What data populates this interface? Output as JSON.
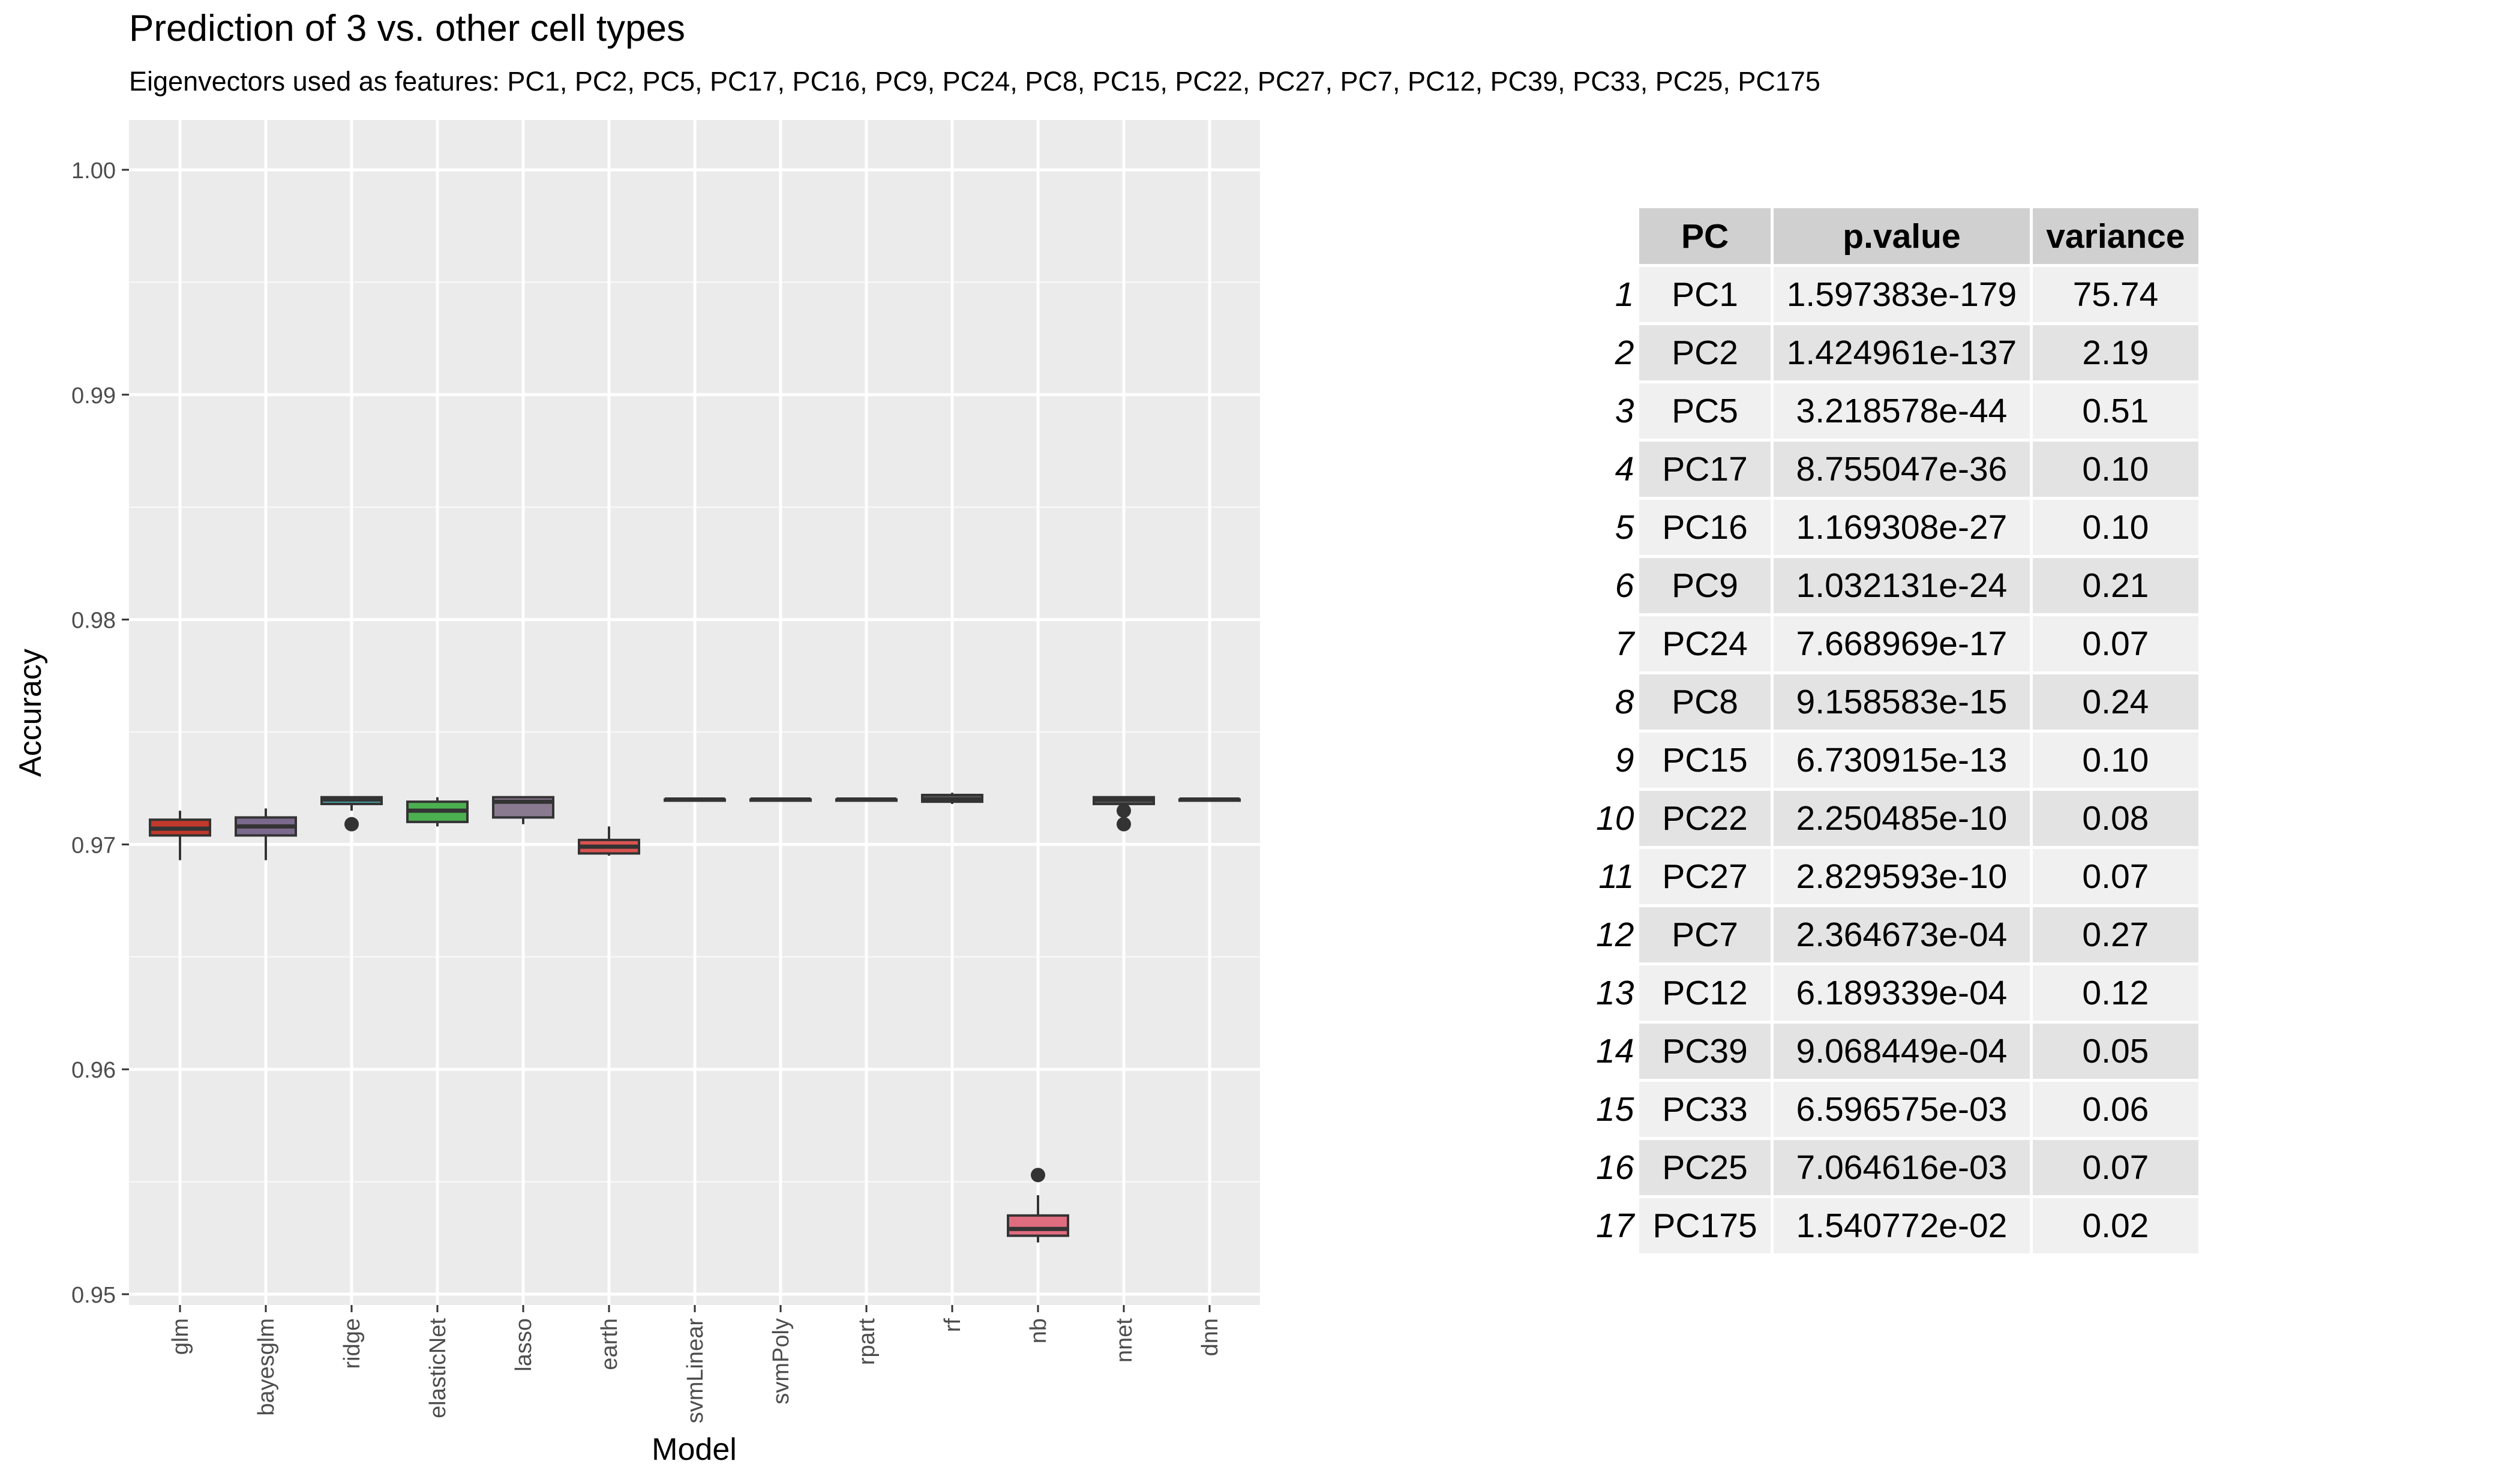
{
  "chart_data": {
    "type": "box",
    "title": "Prediction of 3 vs. other cell types",
    "subtitle": "Eigenvectors used as features: PC1, PC2, PC5, PC17, PC16, PC9, PC24, PC8, PC15, PC22, PC27, PC7, PC12, PC39, PC33, PC25, PC175",
    "xlabel": "Model",
    "ylabel": "Accuracy",
    "ylim": [
      0.95,
      1.0
    ],
    "yticks": [
      "0.95",
      "0.96",
      "0.97",
      "0.98",
      "0.99",
      "1.00"
    ],
    "grid": true,
    "legend": "none",
    "categories": [
      "glm",
      "bayesglm",
      "ridge",
      "elasticNet",
      "lasso",
      "earth",
      "svmLinear",
      "svmPoly",
      "rpart",
      "rf",
      "nb",
      "nnet",
      "dnn"
    ],
    "boxes": [
      {
        "model": "glm",
        "color": "#c0392b",
        "min": 0.9693,
        "q1": 0.9704,
        "median": 0.9707,
        "q3": 0.9711,
        "max": 0.9715,
        "outliers": []
      },
      {
        "model": "bayesglm",
        "color": "#7b6a8d",
        "min": 0.9693,
        "q1": 0.9704,
        "median": 0.9708,
        "q3": 0.9712,
        "max": 0.9716,
        "outliers": []
      },
      {
        "model": "ridge",
        "color": "#4a9fa6",
        "min": 0.9715,
        "q1": 0.9718,
        "median": 0.972,
        "q3": 0.9721,
        "max": 0.9721,
        "outliers": [
          0.9709
        ]
      },
      {
        "model": "elasticNet",
        "color": "#4caf50",
        "min": 0.9708,
        "q1": 0.971,
        "median": 0.9715,
        "q3": 0.9719,
        "max": 0.9721,
        "outliers": []
      },
      {
        "model": "lasso",
        "color": "#8a7a90",
        "min": 0.9709,
        "q1": 0.9712,
        "median": 0.9719,
        "q3": 0.9721,
        "max": 0.9721,
        "outliers": []
      },
      {
        "model": "earth",
        "color": "#d9534f",
        "min": 0.9695,
        "q1": 0.9696,
        "median": 0.9699,
        "q3": 0.9702,
        "max": 0.9708,
        "outliers": []
      },
      {
        "model": "svmLinear",
        "color": "#555555",
        "min": 0.972,
        "q1": 0.972,
        "median": 0.972,
        "q3": 0.972,
        "max": 0.972,
        "outliers": []
      },
      {
        "model": "svmPoly",
        "color": "#555555",
        "min": 0.972,
        "q1": 0.972,
        "median": 0.972,
        "q3": 0.972,
        "max": 0.972,
        "outliers": []
      },
      {
        "model": "rpart",
        "color": "#555555",
        "min": 0.972,
        "q1": 0.972,
        "median": 0.972,
        "q3": 0.972,
        "max": 0.972,
        "outliers": []
      },
      {
        "model": "rf",
        "color": "#555555",
        "min": 0.9718,
        "q1": 0.9719,
        "median": 0.972,
        "q3": 0.9722,
        "max": 0.9723,
        "outliers": []
      },
      {
        "model": "nb",
        "color": "#e06c80",
        "min": 0.9523,
        "q1": 0.9526,
        "median": 0.9529,
        "q3": 0.9535,
        "max": 0.9544,
        "outliers": [
          0.9553
        ]
      },
      {
        "model": "nnet",
        "color": "#555555",
        "min": 0.9717,
        "q1": 0.9718,
        "median": 0.972,
        "q3": 0.9721,
        "max": 0.9721,
        "outliers": [
          0.9709,
          0.9715
        ]
      },
      {
        "model": "dnn",
        "color": "#555555",
        "min": 0.972,
        "q1": 0.972,
        "median": 0.972,
        "q3": 0.972,
        "max": 0.972,
        "outliers": []
      }
    ]
  },
  "table": {
    "headers": [
      "PC",
      "p.value",
      "variance"
    ],
    "rows": [
      {
        "idx": "1",
        "pc": "PC1",
        "p": "1.597383e-179",
        "v": "75.74"
      },
      {
        "idx": "2",
        "pc": "PC2",
        "p": "1.424961e-137",
        "v": "2.19"
      },
      {
        "idx": "3",
        "pc": "PC5",
        "p": "3.218578e-44",
        "v": "0.51"
      },
      {
        "idx": "4",
        "pc": "PC17",
        "p": "8.755047e-36",
        "v": "0.10"
      },
      {
        "idx": "5",
        "pc": "PC16",
        "p": "1.169308e-27",
        "v": "0.10"
      },
      {
        "idx": "6",
        "pc": "PC9",
        "p": "1.032131e-24",
        "v": "0.21"
      },
      {
        "idx": "7",
        "pc": "PC24",
        "p": "7.668969e-17",
        "v": "0.07"
      },
      {
        "idx": "8",
        "pc": "PC8",
        "p": "9.158583e-15",
        "v": "0.24"
      },
      {
        "idx": "9",
        "pc": "PC15",
        "p": "6.730915e-13",
        "v": "0.10"
      },
      {
        "idx": "10",
        "pc": "PC22",
        "p": "2.250485e-10",
        "v": "0.08"
      },
      {
        "idx": "11",
        "pc": "PC27",
        "p": "2.829593e-10",
        "v": "0.07"
      },
      {
        "idx": "12",
        "pc": "PC7",
        "p": "2.364673e-04",
        "v": "0.27"
      },
      {
        "idx": "13",
        "pc": "PC12",
        "p": "6.189339e-04",
        "v": "0.12"
      },
      {
        "idx": "14",
        "pc": "PC39",
        "p": "9.068449e-04",
        "v": "0.05"
      },
      {
        "idx": "15",
        "pc": "PC33",
        "p": "6.596575e-03",
        "v": "0.06"
      },
      {
        "idx": "16",
        "pc": "PC25",
        "p": "7.064616e-03",
        "v": "0.07"
      },
      {
        "idx": "17",
        "pc": "PC175",
        "p": "1.540772e-02",
        "v": "0.02"
      }
    ]
  }
}
